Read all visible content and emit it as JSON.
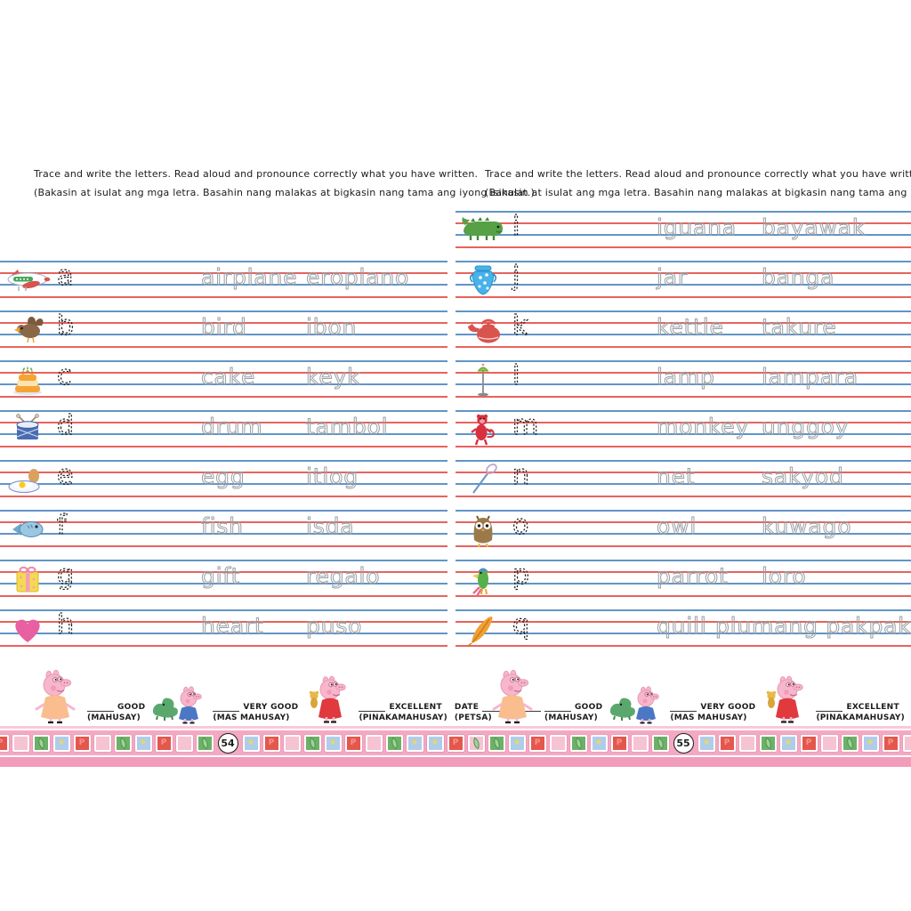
{
  "instructions": {
    "line1": "Trace and write the letters. Read aloud and pronounce correctly what you have written.",
    "line2": "(Bakasin at isulat ang mga letra. Basahin nang malakas at bigkasin nang tama ang iyong isinulat.)"
  },
  "pages": [
    {
      "side": "left",
      "page_number": "54",
      "rows": [
        {
          "letter": "a",
          "icon": "airplane-icon",
          "english": "airplane",
          "filipino": "eroplano"
        },
        {
          "letter": "b",
          "icon": "bird-icon",
          "english": "bird",
          "filipino": "ibon"
        },
        {
          "letter": "c",
          "icon": "cake-icon",
          "english": "cake",
          "filipino": "keyk"
        },
        {
          "letter": "d",
          "icon": "drum-icon",
          "english": "drum",
          "filipino": "tambol"
        },
        {
          "letter": "e",
          "icon": "egg-icon",
          "english": "egg",
          "filipino": "itlog"
        },
        {
          "letter": "f",
          "icon": "fish-icon",
          "english": "fish",
          "filipino": "isda"
        },
        {
          "letter": "g",
          "icon": "gift-icon",
          "english": "gift",
          "filipino": "regalo"
        },
        {
          "letter": "h",
          "icon": "heart-icon",
          "english": "heart",
          "filipino": "puso"
        }
      ]
    },
    {
      "side": "right",
      "page_number": "55",
      "rows": [
        {
          "letter": "i",
          "icon": "iguana-icon",
          "english": "iguana",
          "filipino": "bayawak"
        },
        {
          "letter": "j",
          "icon": "jar-icon",
          "english": "jar",
          "filipino": "banga"
        },
        {
          "letter": "k",
          "icon": "kettle-icon",
          "english": "kettle",
          "filipino": "takure"
        },
        {
          "letter": "l",
          "icon": "lamp-icon",
          "english": "lamp",
          "filipino": "lampara"
        },
        {
          "letter": "m",
          "icon": "monkey-icon",
          "english": "monkey",
          "filipino": "unggoy"
        },
        {
          "letter": "n",
          "icon": "net-icon",
          "english": "net",
          "filipino": "sakyod"
        },
        {
          "letter": "o",
          "icon": "owl-icon",
          "english": "owl",
          "filipino": "kuwago"
        },
        {
          "letter": "p",
          "icon": "parrot-icon",
          "english": "parrot",
          "filipino": "loro"
        },
        {
          "letter": "q",
          "icon": "quill-icon",
          "english": "quill",
          "filipino": "plumang pakpak"
        }
      ]
    }
  ],
  "rating": {
    "items": [
      {
        "character": "mummy-pig-icon",
        "label": "GOOD",
        "sublabel": "(MAHUSAY)"
      },
      {
        "character": "george-pig-icon",
        "label": "VERY GOOD",
        "sublabel": "(MAS MAHUSAY)"
      },
      {
        "character": "peppa-pig-icon",
        "label": "EXCELLENT",
        "sublabel": "(PINAKAMAHUSAY)"
      }
    ],
    "date_label": "DATE",
    "date_sublabel": "(PETSA)"
  },
  "colors": {
    "guide_blue": "#6195c6",
    "guide_red": "#e7635e",
    "trace_gray": "#9aa0a6",
    "trace_letter_black": "#222222",
    "border_pink_band": "#f4a9c3",
    "border_pink_solid": "#f09cba",
    "border_pink_light": "#f9c8da",
    "stamp_red": "#e4574d",
    "stamp_green": "#6cb168",
    "stamp_blue": "#aecdea",
    "stamp_pink": "#f6c3d3"
  }
}
